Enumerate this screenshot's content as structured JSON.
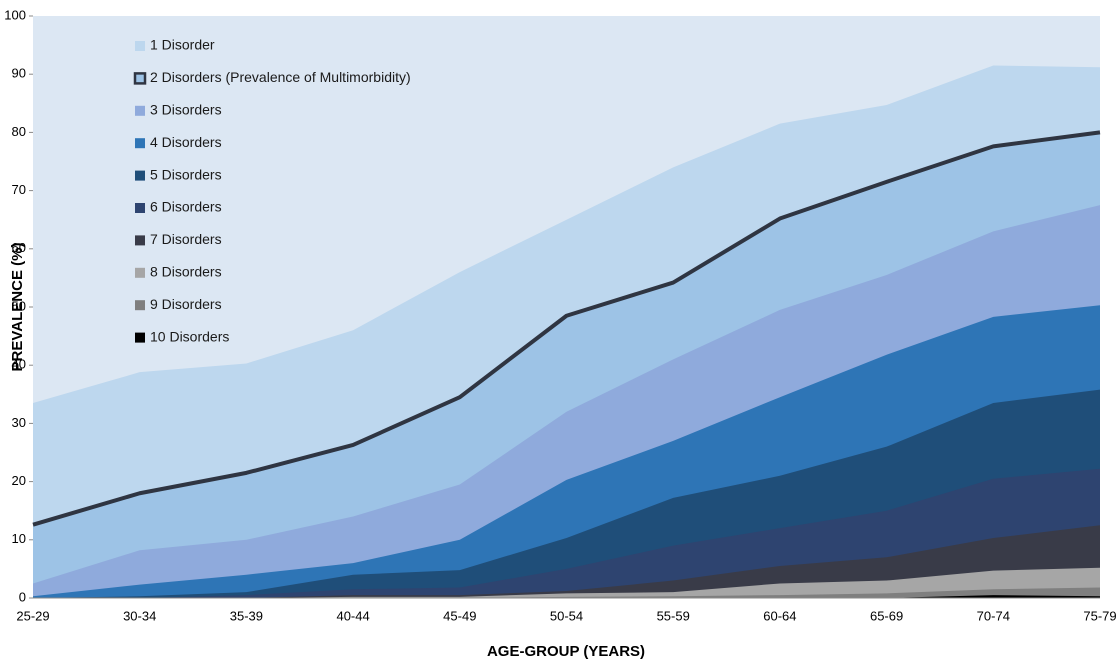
{
  "chart_data": {
    "type": "area",
    "x_label": "AGE-GROUP (YEARS)",
    "y_label": "PREVALENCE (%)",
    "categories": [
      "25-29",
      "30-34",
      "35-39",
      "40-44",
      "45-49",
      "50-54",
      "55-59",
      "60-64",
      "65-69",
      "70-74",
      "75-79"
    ],
    "ylim": [
      0,
      100
    ],
    "yticks": [
      0,
      10,
      20,
      30,
      40,
      50,
      60,
      70,
      80,
      90,
      100
    ],
    "plot_background": "#dce7f3",
    "legend": "upper left",
    "series": [
      {
        "name": "1 Disorder",
        "color": "#bdd7ee",
        "values": [
          33.5,
          38.8,
          40.3,
          46,
          56,
          65,
          74,
          81.5,
          84.7,
          91.5,
          91.2
        ]
      },
      {
        "name": "2 Disorders (Prevalence of Multimorbidity)",
        "color": "#9dc3e6",
        "line_color": "#2f3542",
        "values": [
          12.6,
          18,
          21.5,
          26.3,
          34.5,
          48.5,
          54.2,
          65.2,
          71.5,
          77.6,
          80
        ]
      },
      {
        "name": "3 Disorders",
        "color": "#8faadc",
        "values": [
          2.5,
          8.2,
          10,
          14,
          19.5,
          32,
          41,
          49.5,
          55.5,
          63,
          67.5
        ]
      },
      {
        "name": "4 Disorders",
        "color": "#2e75b6",
        "values": [
          0.3,
          2.3,
          4,
          6,
          10,
          20.3,
          27,
          34.5,
          41.8,
          48.3,
          50.3
        ]
      },
      {
        "name": "5 Disorders",
        "color": "#1f4e79",
        "values": [
          0,
          0.3,
          1,
          4,
          4.8,
          10.3,
          17.2,
          21,
          26,
          33.5,
          35.8
        ]
      },
      {
        "name": "6 Disorders",
        "color": "#2e4470",
        "values": [
          0,
          0,
          0.5,
          1.5,
          1.8,
          5,
          9,
          12,
          15,
          20.5,
          22.2
        ]
      },
      {
        "name": "7 Disorders",
        "color": "#393b48",
        "values": [
          0,
          0,
          0,
          0.5,
          0.5,
          1.2,
          3,
          5.5,
          7,
          10.3,
          12.5
        ]
      },
      {
        "name": "8 Disorders",
        "color": "#a6a6a6",
        "values": [
          0,
          0,
          0,
          0.2,
          0.2,
          0.8,
          1,
          2.5,
          3,
          4.7,
          5.2
        ]
      },
      {
        "name": "9 Disorders",
        "color": "#7f7f7f",
        "values": [
          0,
          0,
          0,
          0,
          0,
          0.2,
          0.3,
          0.5,
          0.8,
          1.5,
          1.8
        ]
      },
      {
        "name": "10 Disorders",
        "color": "#000000",
        "values": [
          0,
          0,
          0,
          0,
          0,
          0,
          0,
          0,
          0,
          0.5,
          0.3
        ]
      }
    ]
  }
}
